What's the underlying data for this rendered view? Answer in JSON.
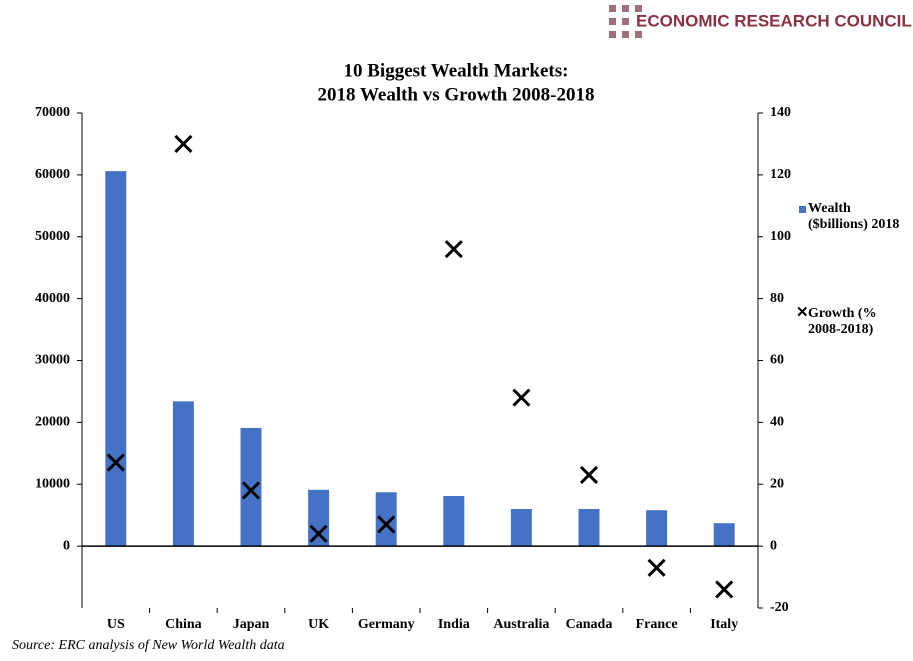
{
  "header": {
    "brand": "ECONOMIC RESEARCH COUNCIL"
  },
  "chart_data": {
    "type": "bar+scatter",
    "title": [
      "10 Biggest Wealth Markets:",
      "2018 Wealth vs Growth 2008-2018"
    ],
    "categories": [
      "US",
      "China",
      "Japan",
      "UK",
      "Germany",
      "India",
      "Australia",
      "Canada",
      "France",
      "Italy"
    ],
    "series": [
      {
        "name": "Wealth ($billions) 2018",
        "type": "bar",
        "color": "#4472c4",
        "axis": "y",
        "values": [
          60600,
          23400,
          19100,
          9100,
          8700,
          8100,
          6000,
          6000,
          5800,
          3700
        ]
      },
      {
        "name": "Growth (% 2008-2018)",
        "type": "scatter",
        "color": "#000000",
        "axis": "y2",
        "values": [
          27,
          130,
          18,
          4,
          7,
          96,
          48,
          23,
          -7,
          -14
        ]
      }
    ],
    "ylim": [
      -10000,
      70000
    ],
    "yticks": [
      0,
      10000,
      20000,
      30000,
      40000,
      50000,
      60000,
      70000
    ],
    "y2lim": [
      -20,
      140
    ],
    "y2ticks": [
      -20,
      0,
      20,
      40,
      60,
      80,
      100,
      120,
      140
    ],
    "source": "Source: ERC analysis of New World Wealth data"
  }
}
